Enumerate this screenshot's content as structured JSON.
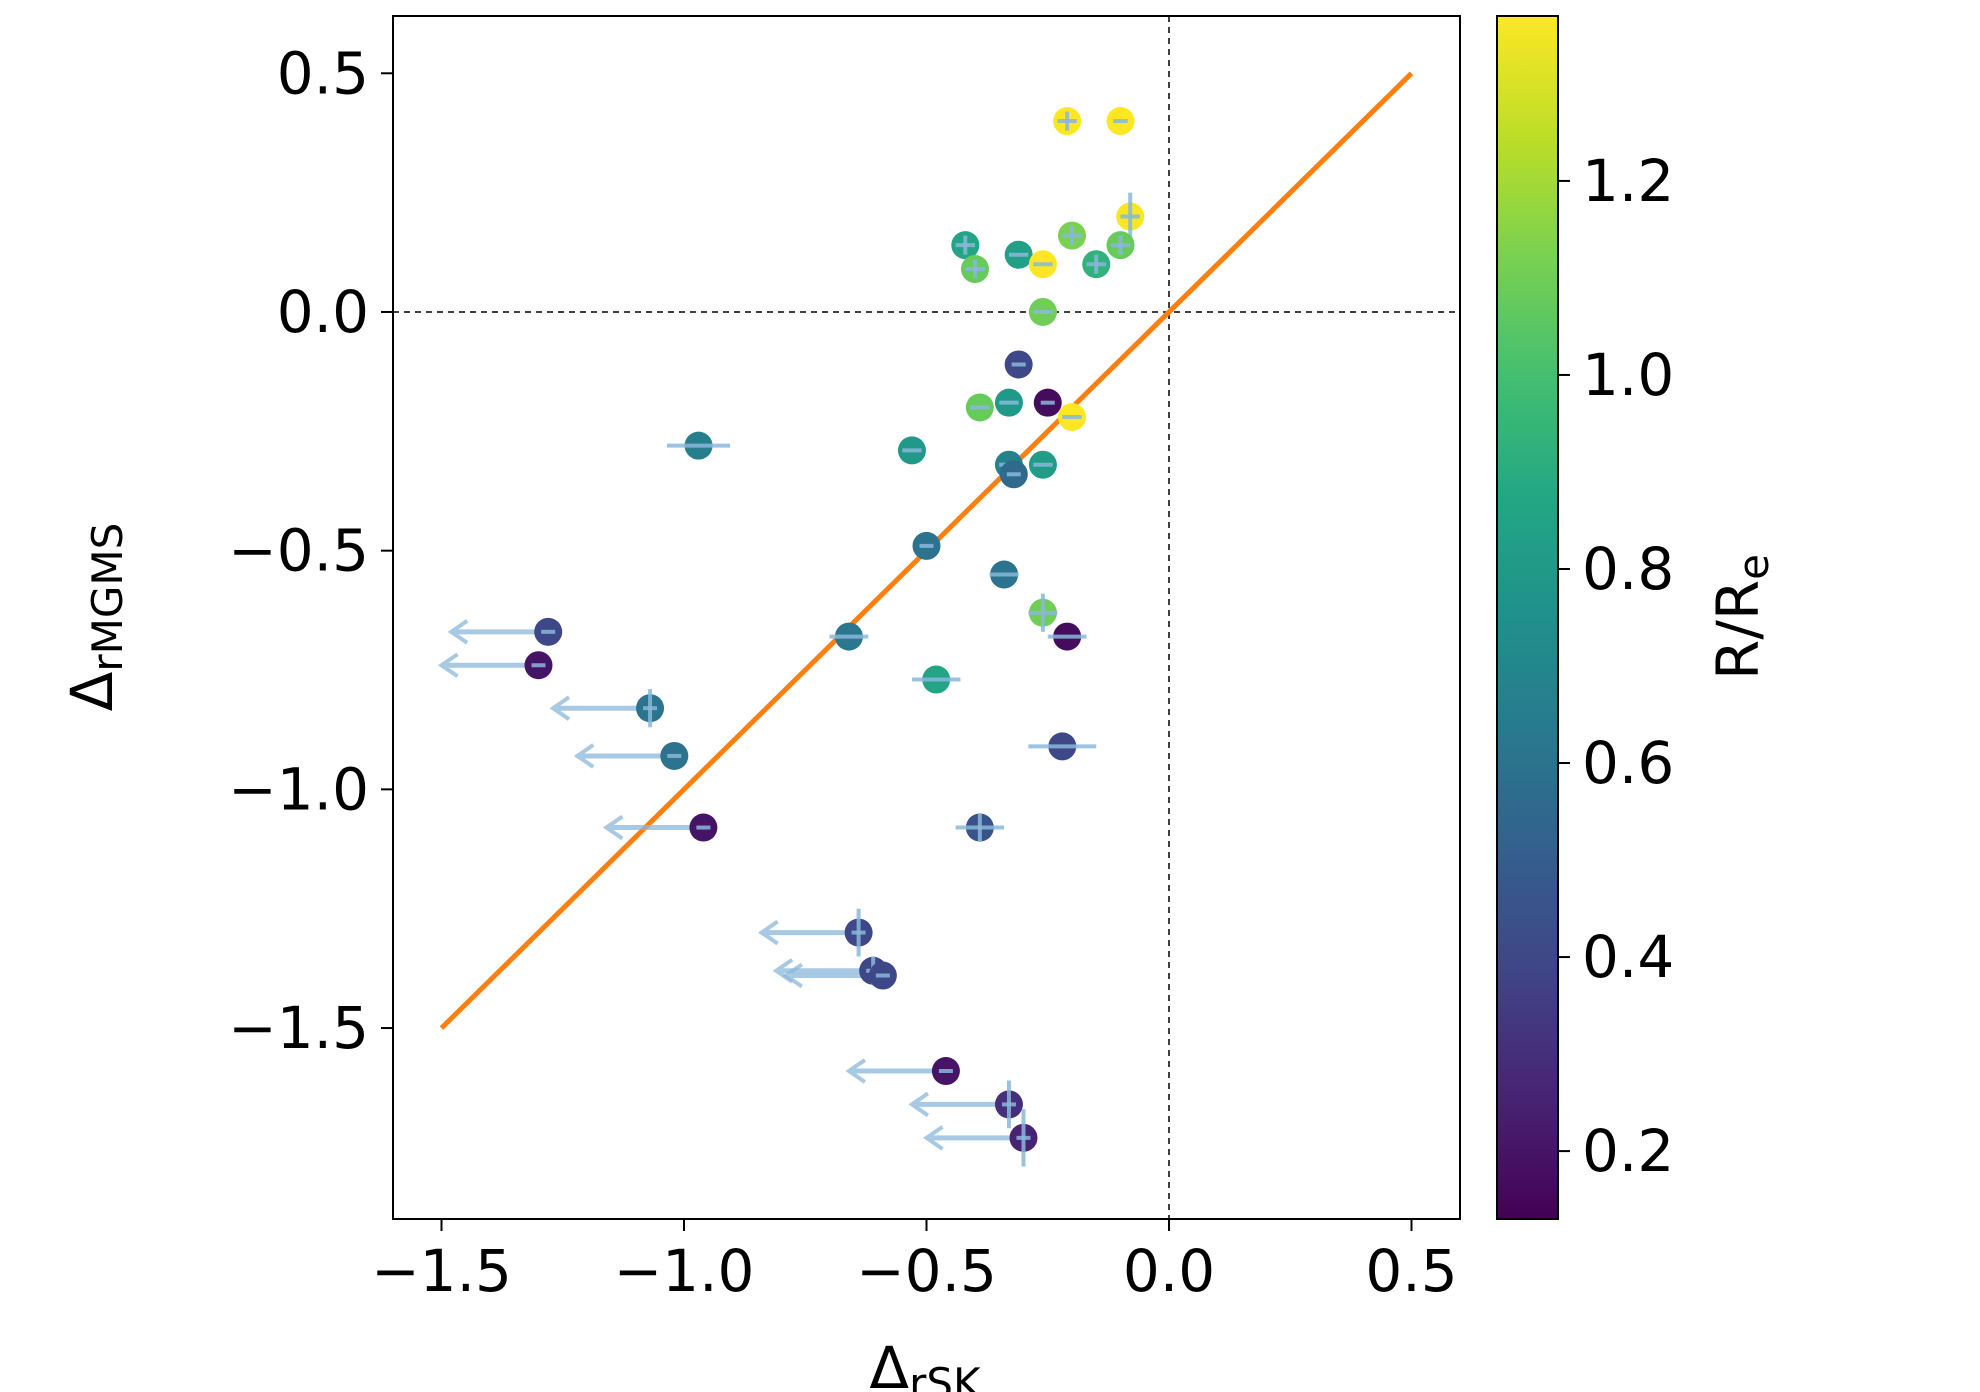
{
  "chart_data": {
    "type": "scatter",
    "title": "",
    "xlabel_base": "Δ",
    "xlabel_sub": "rSK",
    "ylabel_base": "Δ",
    "ylabel_sub": "rMGMS",
    "xlim": [
      -1.6,
      0.6
    ],
    "ylim": [
      -1.9,
      0.62
    ],
    "xticks": [
      -1.5,
      -1.0,
      -0.5,
      0.0,
      0.5
    ],
    "xtick_labels": [
      "−1.5",
      "−1.0",
      "−0.5",
      "0.0",
      "0.5"
    ],
    "yticks": [
      -1.5,
      -1.0,
      -0.5,
      0.0,
      0.5
    ],
    "ytick_labels": [
      "−1.5",
      "−1.0",
      "−0.5",
      "0.0",
      "0.5"
    ],
    "reference_lines": {
      "vertical_x": 0.0,
      "horizontal_y": 0.0,
      "style": "dashed",
      "color": "#000000"
    },
    "one_to_one_line": {
      "x": [
        -1.5,
        0.5
      ],
      "y": [
        -1.5,
        0.5
      ],
      "color": "#ff7f0e"
    },
    "colorbar": {
      "label_base": "R/R",
      "label_sub": "e",
      "range": [
        0.13,
        1.37
      ],
      "ticks": [
        0.2,
        0.4,
        0.6,
        0.8,
        1.0,
        1.2
      ],
      "tick_labels": [
        "0.2",
        "0.4",
        "0.6",
        "0.8",
        "1.0",
        "1.2"
      ],
      "colormap": "viridis"
    },
    "errorbar_color": "#8ab8db",
    "points": [
      {
        "x": -0.21,
        "y": 0.4,
        "c": 1.37,
        "xerr": 0.02,
        "yerr": 0.02
      },
      {
        "x": -0.1,
        "y": 0.4,
        "c": 1.37,
        "xerr": 0.015,
        "yerr": 0.0
      },
      {
        "x": -0.08,
        "y": 0.2,
        "c": 1.36,
        "xerr": 0.02,
        "yerr": 0.05
      },
      {
        "x": -0.42,
        "y": 0.14,
        "c": 0.86,
        "xerr": 0.02,
        "yerr": 0.02
      },
      {
        "x": -0.31,
        "y": 0.12,
        "c": 0.83,
        "xerr": 0.02,
        "yerr": 0.0
      },
      {
        "x": -0.4,
        "y": 0.09,
        "c": 1.08,
        "xerr": 0.02,
        "yerr": 0.02
      },
      {
        "x": -0.26,
        "y": 0.1,
        "c": 1.37,
        "xerr": 0.02,
        "yerr": 0.0
      },
      {
        "x": -0.2,
        "y": 0.16,
        "c": 1.12,
        "xerr": 0.02,
        "yerr": 0.02
      },
      {
        "x": -0.15,
        "y": 0.1,
        "c": 0.93,
        "xerr": 0.02,
        "yerr": 0.02
      },
      {
        "x": -0.1,
        "y": 0.14,
        "c": 1.08,
        "xerr": 0.02,
        "yerr": 0.02
      },
      {
        "x": -0.26,
        "y": 0.0,
        "c": 1.1,
        "xerr": 0.02,
        "yerr": 0.0
      },
      {
        "x": -0.31,
        "y": -0.11,
        "c": 0.4,
        "xerr": 0.0,
        "yerr": 0.0
      },
      {
        "x": -0.39,
        "y": -0.2,
        "c": 1.08,
        "xerr": 0.02,
        "yerr": 0.0
      },
      {
        "x": -0.33,
        "y": -0.19,
        "c": 0.8,
        "xerr": 0.02,
        "yerr": 0.0
      },
      {
        "x": -0.25,
        "y": -0.19,
        "c": 0.17,
        "xerr": 0.0,
        "yerr": 0.0
      },
      {
        "x": -0.2,
        "y": -0.22,
        "c": 1.37,
        "xerr": 0.02,
        "yerr": 0.0
      },
      {
        "x": -0.97,
        "y": -0.28,
        "c": 0.66,
        "xerr": 0.065,
        "yerr": 0.0
      },
      {
        "x": -0.53,
        "y": -0.29,
        "c": 0.8,
        "xerr": 0.02,
        "yerr": 0.0
      },
      {
        "x": -0.33,
        "y": -0.32,
        "c": 0.68,
        "xerr": 0.02,
        "yerr": 0.0
      },
      {
        "x": -0.26,
        "y": -0.32,
        "c": 0.82,
        "xerr": 0.02,
        "yerr": 0.0
      },
      {
        "x": -0.32,
        "y": -0.34,
        "c": 0.56,
        "xerr": 0.0,
        "yerr": 0.0
      },
      {
        "x": -0.5,
        "y": -0.49,
        "c": 0.6,
        "xerr": 0.0,
        "yerr": 0.0
      },
      {
        "x": -0.34,
        "y": -0.55,
        "c": 0.6,
        "xerr": 0.03,
        "yerr": 0.0
      },
      {
        "x": -0.26,
        "y": -0.63,
        "c": 1.1,
        "xerr": 0.03,
        "yerr": 0.04
      },
      {
        "x": -0.66,
        "y": -0.68,
        "c": 0.62,
        "xerr": 0.04,
        "yerr": 0.0
      },
      {
        "x": -0.21,
        "y": -0.68,
        "c": 0.17,
        "xerr": 0.04,
        "yerr": 0.0
      },
      {
        "x": -0.48,
        "y": -0.77,
        "c": 0.86,
        "xerr": 0.05,
        "yerr": 0.0
      },
      {
        "x": -0.22,
        "y": -0.91,
        "c": 0.4,
        "xerr": 0.07,
        "yerr": 0.0
      },
      {
        "x": -0.39,
        "y": -1.08,
        "c": 0.45,
        "xerr": 0.05,
        "yerr": 0.03
      },
      {
        "x": -1.28,
        "y": -0.67,
        "c": 0.4,
        "xerr": 0.0,
        "yerr": 0.0,
        "upper_limit": true
      },
      {
        "x": -1.3,
        "y": -0.74,
        "c": 0.2,
        "xerr": 0.0,
        "yerr": 0.0,
        "upper_limit": true
      },
      {
        "x": -1.07,
        "y": -0.83,
        "c": 0.6,
        "xerr": 0.0,
        "yerr": 0.04,
        "upper_limit": true
      },
      {
        "x": -1.02,
        "y": -0.93,
        "c": 0.6,
        "xerr": 0.0,
        "yerr": 0.0,
        "upper_limit": true
      },
      {
        "x": -0.96,
        "y": -1.08,
        "c": 0.2,
        "xerr": 0.0,
        "yerr": 0.0,
        "upper_limit": true
      },
      {
        "x": -0.64,
        "y": -1.3,
        "c": 0.4,
        "xerr": 0.0,
        "yerr": 0.05,
        "upper_limit": true
      },
      {
        "x": -0.61,
        "y": -1.38,
        "c": 0.4,
        "xerr": 0.0,
        "yerr": 0.03,
        "upper_limit": true
      },
      {
        "x": -0.59,
        "y": -1.39,
        "c": 0.4,
        "xerr": 0.0,
        "yerr": 0.0,
        "upper_limit": true
      },
      {
        "x": -0.46,
        "y": -1.59,
        "c": 0.2,
        "xerr": 0.0,
        "yerr": 0.0,
        "upper_limit": true
      },
      {
        "x": -0.33,
        "y": -1.66,
        "c": 0.3,
        "xerr": 0.0,
        "yerr": 0.05,
        "upper_limit": true
      },
      {
        "x": -0.3,
        "y": -1.73,
        "c": 0.25,
        "xerr": 0.0,
        "yerr": 0.06,
        "upper_limit": true
      }
    ]
  }
}
